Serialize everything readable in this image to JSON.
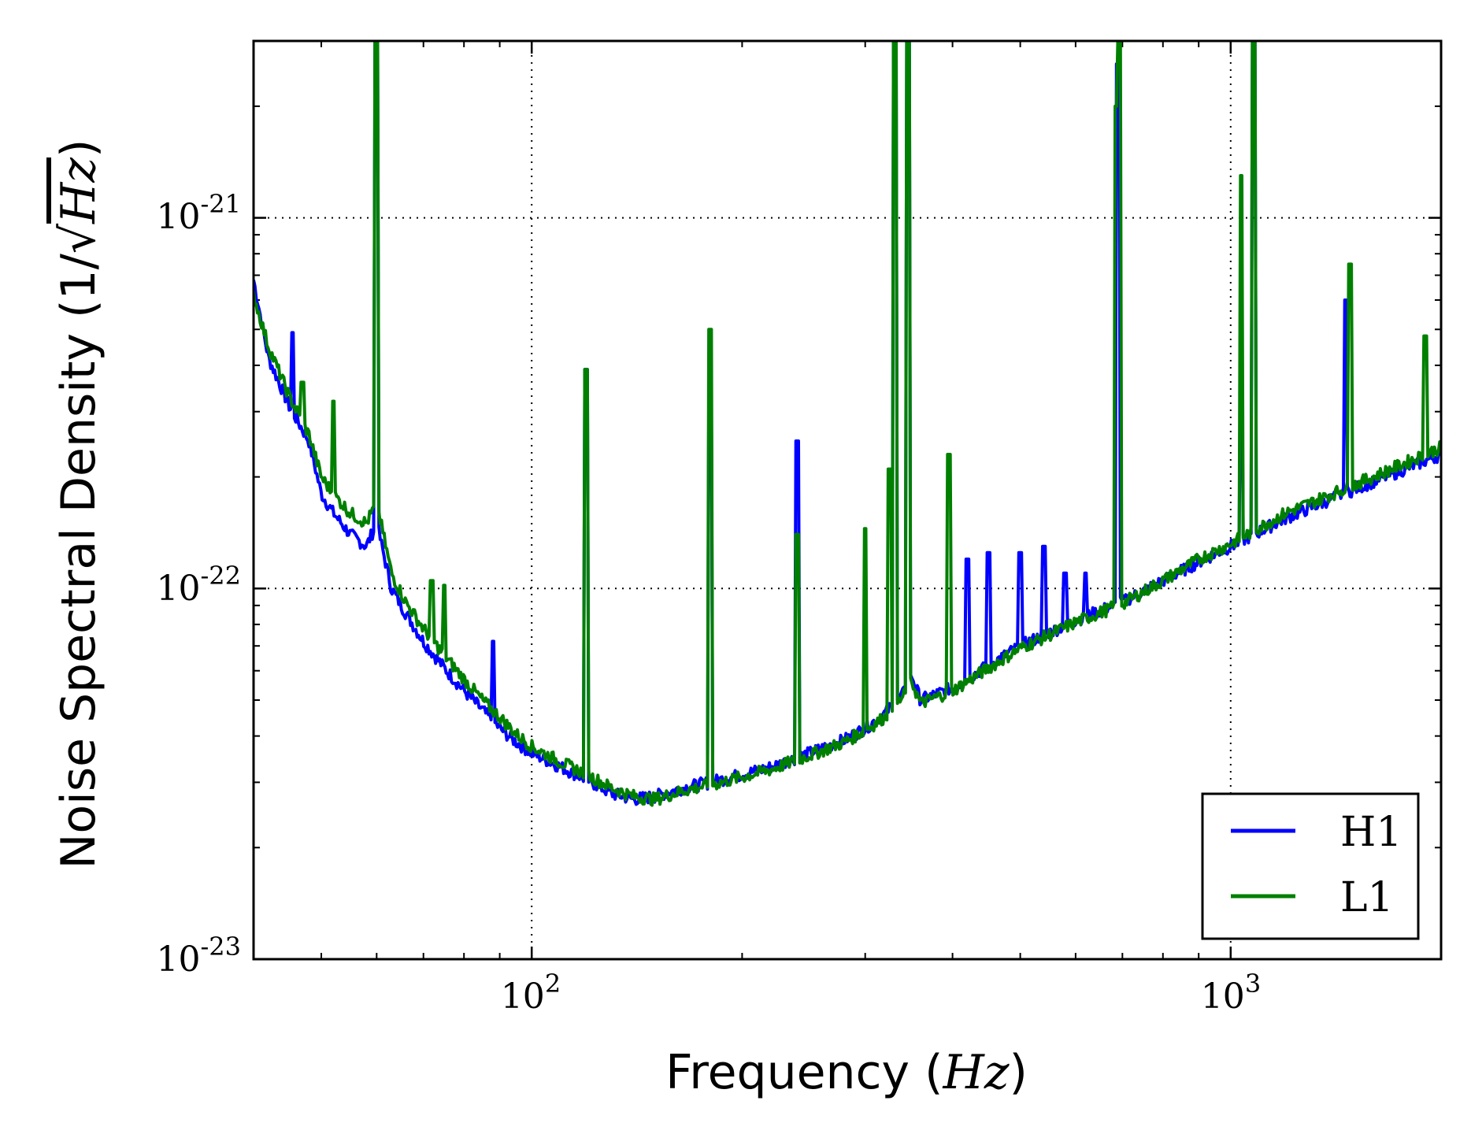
{
  "chart_data": {
    "type": "line",
    "title": "",
    "xscale": "log",
    "yscale": "log",
    "xlim": [
      40,
      2000
    ],
    "ylim": [
      1e-23,
      3e-21
    ],
    "grid": true,
    "legend_position": "bottom-right",
    "xlabel": {
      "text": "Frequency",
      "unit": "Hz"
    },
    "ylabel": {
      "text": "Noise Spectral Density",
      "unit_num": "1",
      "unit_den": "Hz"
    },
    "x_ticks": [
      {
        "value": 100,
        "base": "10",
        "exp": "2"
      },
      {
        "value": 1000,
        "base": "10",
        "exp": "3"
      }
    ],
    "y_ticks": [
      {
        "value": 1e-23,
        "base": "10",
        "exp": "-23"
      },
      {
        "value": 1e-22,
        "base": "10",
        "exp": "-22"
      },
      {
        "value": 1e-21,
        "base": "10",
        "exp": "-21"
      }
    ],
    "series": [
      {
        "name": "H1",
        "color": "#0000ff",
        "x": [
          40,
          42,
          45,
          48,
          50,
          52,
          55,
          58,
          60,
          63,
          66,
          70,
          75,
          80,
          85,
          90,
          95,
          100,
          110,
          120,
          130,
          140,
          150,
          165,
          180,
          200,
          220,
          250,
          280,
          300,
          320,
          340,
          350,
          360,
          400,
          450,
          500,
          600,
          700,
          800,
          900,
          1000,
          1200,
          1500,
          2000
        ],
        "values": [
          6.8e-22,
          4.2e-22,
          3.1e-22,
          2.5e-22,
          1.8e-22,
          1.6e-22,
          1.4e-22,
          1.3e-22,
          1.5e-22,
          1e-22,
          8.6e-23,
          7.2e-23,
          6.1e-23,
          5.3e-23,
          4.7e-23,
          4.2e-23,
          3.85e-23,
          3.6e-23,
          3.3e-23,
          3.05e-23,
          2.8e-23,
          2.7e-23,
          2.75e-23,
          2.9e-23,
          3e-23,
          3.15e-23,
          3.3e-23,
          3.6e-23,
          3.9e-23,
          4.2e-23,
          4.6e-23,
          5.2e-23,
          5.8e-23,
          5e-23,
          5.4e-23,
          6.2e-23,
          7e-23,
          8.2e-23,
          9.2e-23,
          1.05e-22,
          1.18e-22,
          1.3e-22,
          1.55e-22,
          1.85e-22,
          2.3e-22
        ]
      },
      {
        "name": "L1",
        "color": "#008000",
        "x": [
          40,
          42,
          45,
          48,
          50,
          52,
          55,
          58,
          60,
          63,
          66,
          70,
          75,
          80,
          85,
          90,
          95,
          100,
          110,
          120,
          130,
          140,
          150,
          165,
          180,
          200,
          220,
          250,
          280,
          300,
          320,
          340,
          350,
          360,
          400,
          450,
          500,
          600,
          700,
          800,
          900,
          1000,
          1200,
          1500,
          2000
        ],
        "values": [
          6.2e-22,
          4.5e-22,
          3.3e-22,
          2.6e-22,
          2e-22,
          1.8e-22,
          1.6e-22,
          1.5e-22,
          1.7e-22,
          1.1e-22,
          9.2e-23,
          7.8e-23,
          6.6e-23,
          5.7e-23,
          5e-23,
          4.5e-23,
          4.05e-23,
          3.75e-23,
          3.4e-23,
          3.15e-23,
          2.9e-23,
          2.75e-23,
          2.7e-23,
          2.85e-23,
          2.95e-23,
          3.1e-23,
          3.25e-23,
          3.55e-23,
          3.85e-23,
          4.15e-23,
          4.5e-23,
          5.1e-23,
          5.6e-23,
          4.9e-23,
          5.3e-23,
          6.1e-23,
          6.9e-23,
          8.1e-23,
          9.1e-23,
          1.05e-22,
          1.2e-22,
          1.32e-22,
          1.6e-22,
          1.9e-22,
          2.4e-22
        ]
      }
    ],
    "lines_peaks": [
      {
        "series": "H1",
        "x": 45.5,
        "peak": 4.9e-22
      },
      {
        "series": "H1",
        "x": 60,
        "peak": 3e-21
      },
      {
        "series": "H1",
        "x": 88,
        "peak": 7.2e-23
      },
      {
        "series": "H1",
        "x": 119.5,
        "peak": 3.9e-22
      },
      {
        "series": "H1",
        "x": 180,
        "peak": 3.2e-22
      },
      {
        "series": "H1",
        "x": 240,
        "peak": 2.5e-22
      },
      {
        "series": "H1",
        "x": 331,
        "peak": 3e-21
      },
      {
        "series": "H1",
        "x": 345,
        "peak": 3e-21
      },
      {
        "series": "H1",
        "x": 420,
        "peak": 1.2e-22
      },
      {
        "series": "H1",
        "x": 450,
        "peak": 1.25e-22
      },
      {
        "series": "H1",
        "x": 500,
        "peak": 1.25e-22
      },
      {
        "series": "H1",
        "x": 540,
        "peak": 1.3e-22
      },
      {
        "series": "H1",
        "x": 580,
        "peak": 1.1e-22
      },
      {
        "series": "H1",
        "x": 620,
        "peak": 1.1e-22
      },
      {
        "series": "H1",
        "x": 690,
        "peak": 2.6e-21
      },
      {
        "series": "H1",
        "x": 1035,
        "peak": 4.2e-22
      },
      {
        "series": "H1",
        "x": 1080,
        "peak": 3e-21
      },
      {
        "series": "H1",
        "x": 1460,
        "peak": 6e-22
      },
      {
        "series": "L1",
        "x": 47,
        "peak": 3.6e-22
      },
      {
        "series": "L1",
        "x": 52,
        "peak": 3.2e-22
      },
      {
        "series": "L1",
        "x": 60,
        "peak": 3e-21
      },
      {
        "series": "L1",
        "x": 72,
        "peak": 1.05e-22
      },
      {
        "series": "L1",
        "x": 75,
        "peak": 1.02e-22
      },
      {
        "series": "L1",
        "x": 119.5,
        "peak": 3.9e-22
      },
      {
        "series": "L1",
        "x": 180,
        "peak": 5e-22
      },
      {
        "series": "L1",
        "x": 240,
        "peak": 1.4e-22
      },
      {
        "series": "L1",
        "x": 300,
        "peak": 1.45e-22
      },
      {
        "series": "L1",
        "x": 325,
        "peak": 2.1e-22
      },
      {
        "series": "L1",
        "x": 331,
        "peak": 3e-21
      },
      {
        "series": "L1",
        "x": 345,
        "peak": 3e-21
      },
      {
        "series": "L1",
        "x": 395,
        "peak": 2.3e-22
      },
      {
        "series": "L1",
        "x": 685,
        "peak": 2e-21
      },
      {
        "series": "L1",
        "x": 692,
        "peak": 3e-21
      },
      {
        "series": "L1",
        "x": 1035,
        "peak": 1.3e-21
      },
      {
        "series": "L1",
        "x": 1080,
        "peak": 3e-21
      },
      {
        "series": "L1",
        "x": 1480,
        "peak": 7.5e-22
      },
      {
        "series": "L1",
        "x": 1900,
        "peak": 4.8e-22
      }
    ]
  }
}
